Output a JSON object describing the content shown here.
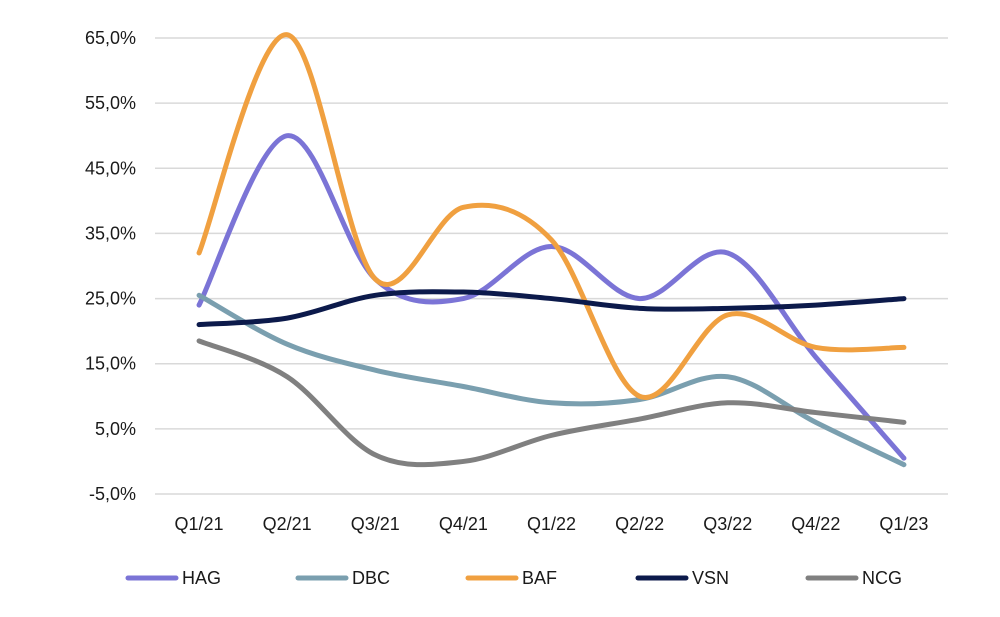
{
  "chart_data": {
    "type": "line",
    "smooth": true,
    "categories": [
      "Q1/21",
      "Q2/21",
      "Q3/21",
      "Q4/21",
      "Q1/22",
      "Q2/22",
      "Q3/22",
      "Q4/22",
      "Q1/23"
    ],
    "y_ticks": [
      "65,0%",
      "55,0%",
      "45,0%",
      "35,0%",
      "25,0%",
      "15,0%",
      "5,0%",
      "-5,0%"
    ],
    "ylim": [
      -5,
      65
    ],
    "y_unit": "%",
    "grid": true,
    "legend_position": "bottom",
    "series": [
      {
        "name": "HAG",
        "color": "#7b74d6",
        "values": [
          24,
          50,
          28,
          25,
          33,
          25,
          32,
          16,
          0.5
        ]
      },
      {
        "name": "DBC",
        "color": "#7a9faf",
        "values": [
          25.5,
          18,
          14,
          11.5,
          9,
          9.5,
          13,
          6,
          -0.5
        ]
      },
      {
        "name": "BAF",
        "color": "#f0a040",
        "values": [
          32,
          65.5,
          28,
          39,
          34,
          10,
          22.5,
          17.5,
          17.5
        ]
      },
      {
        "name": "VSN",
        "color": "#0c1a4b",
        "values": [
          21,
          22,
          25.5,
          26,
          25,
          23.5,
          23.5,
          24,
          25
        ]
      },
      {
        "name": "NCG",
        "color": "#808080",
        "values": [
          18.5,
          13,
          1,
          0,
          4,
          6.5,
          9,
          7.5,
          6
        ]
      }
    ]
  }
}
